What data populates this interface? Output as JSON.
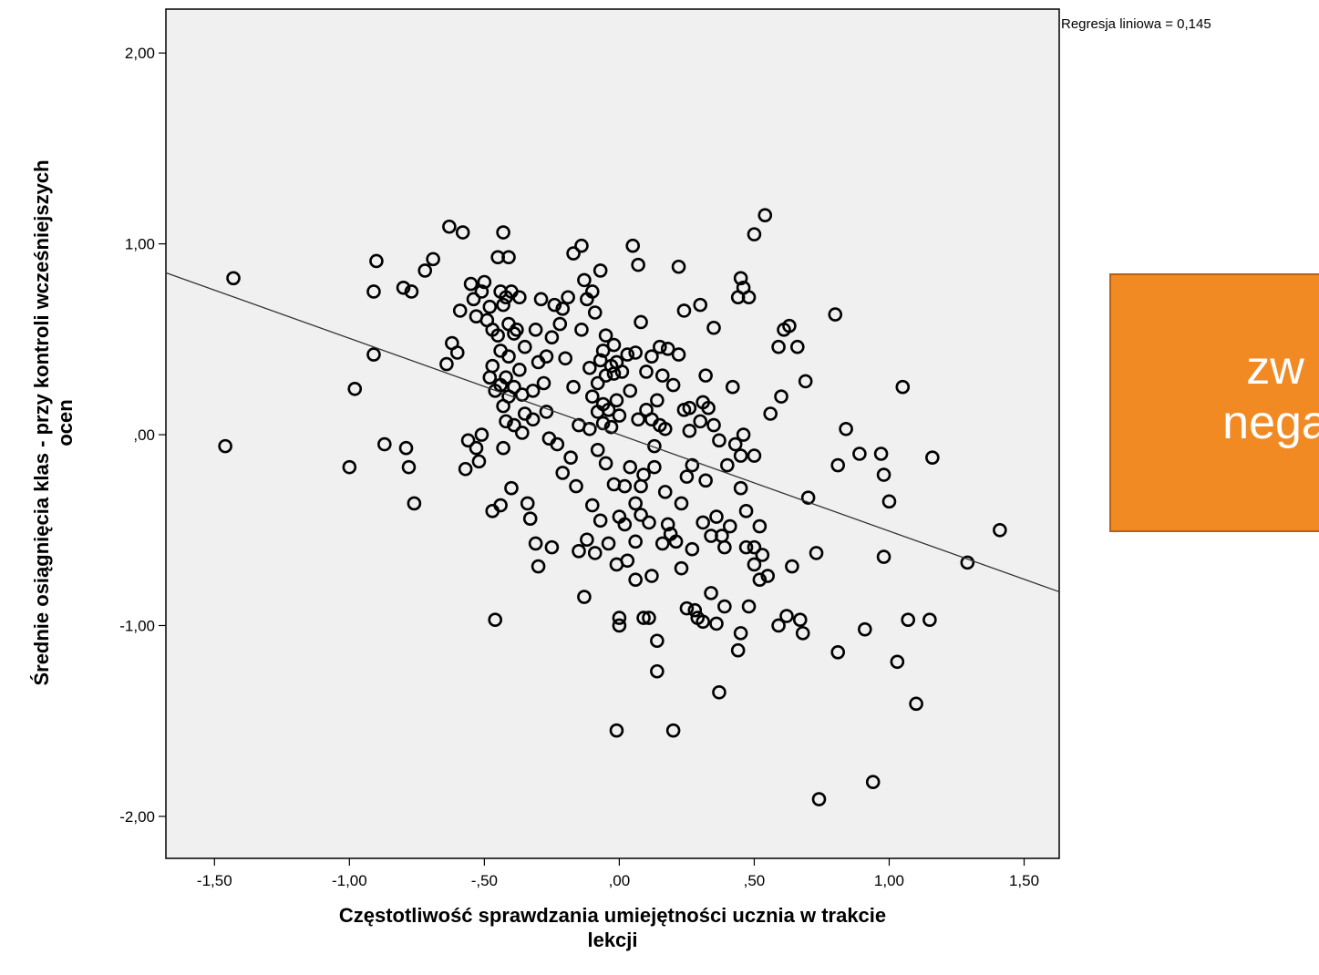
{
  "chart_data": {
    "type": "scatter",
    "title": "",
    "xlabel": "Częstotliwość sprawdzania umiejętności ucznia w trakcie lekcji",
    "ylabel": "Średnie osiągnięcia klas - przy kontroli wcześniejszych ocen",
    "xlim": [
      -1.68,
      1.63
    ],
    "ylim": [
      -2.22,
      2.23
    ],
    "x_ticks": [
      -1.5,
      -1.0,
      -0.5,
      0.0,
      0.5,
      1.0,
      1.5
    ],
    "x_tick_labels": [
      "-1,50",
      "-1,00",
      "-,50",
      ",00",
      ",50",
      "1,00",
      "1,50"
    ],
    "y_ticks": [
      2.0,
      1.0,
      0.0,
      -1.0,
      -2.0
    ],
    "y_tick_labels": [
      "2,00",
      "1,00",
      ",00",
      "-1,00",
      "-2,00"
    ],
    "grid": false,
    "regression": {
      "label": "Regresja liniowa = 0,145",
      "intercept": 0.0,
      "slope": -0.505
    },
    "points": [
      [
        -1.43,
        0.82
      ],
      [
        -1.46,
        -0.06
      ],
      [
        -0.98,
        0.24
      ],
      [
        -1.0,
        -0.17
      ],
      [
        -0.91,
        0.75
      ],
      [
        -0.9,
        0.91
      ],
      [
        -0.91,
        0.42
      ],
      [
        -0.87,
        -0.05
      ],
      [
        -0.8,
        0.77
      ],
      [
        -0.79,
        -0.07
      ],
      [
        -0.78,
        -0.17
      ],
      [
        -0.77,
        0.75
      ],
      [
        -0.76,
        -0.36
      ],
      [
        -0.72,
        0.86
      ],
      [
        -0.69,
        0.92
      ],
      [
        -0.64,
        0.37
      ],
      [
        -0.63,
        1.09
      ],
      [
        -0.62,
        0.48
      ],
      [
        -0.6,
        0.43
      ],
      [
        -0.59,
        0.65
      ],
      [
        -0.58,
        1.06
      ],
      [
        -0.57,
        -0.18
      ],
      [
        -0.56,
        -0.03
      ],
      [
        -0.55,
        0.79
      ],
      [
        -0.54,
        0.71
      ],
      [
        -0.53,
        -0.07
      ],
      [
        -0.53,
        0.62
      ],
      [
        -0.52,
        -0.14
      ],
      [
        -0.51,
        0.0
      ],
      [
        -0.51,
        0.75
      ],
      [
        -0.5,
        0.8
      ],
      [
        -0.49,
        0.6
      ],
      [
        -0.48,
        0.3
      ],
      [
        -0.48,
        0.67
      ],
      [
        -0.47,
        0.55
      ],
      [
        -0.47,
        0.36
      ],
      [
        -0.47,
        -0.4
      ],
      [
        -0.46,
        0.23
      ],
      [
        -0.46,
        -0.97
      ],
      [
        -0.45,
        0.52
      ],
      [
        -0.45,
        0.93
      ],
      [
        -0.44,
        -0.37
      ],
      [
        -0.44,
        0.75
      ],
      [
        -0.44,
        0.44
      ],
      [
        -0.44,
        0.26
      ],
      [
        -0.43,
        0.68
      ],
      [
        -0.43,
        0.15
      ],
      [
        -0.43,
        1.06
      ],
      [
        -0.43,
        -0.07
      ],
      [
        -0.42,
        0.72
      ],
      [
        -0.42,
        0.3
      ],
      [
        -0.42,
        0.07
      ],
      [
        -0.41,
        0.93
      ],
      [
        -0.41,
        0.58
      ],
      [
        -0.41,
        0.2
      ],
      [
        -0.41,
        0.41
      ],
      [
        -0.4,
        -0.28
      ],
      [
        -0.4,
        0.75
      ],
      [
        -0.39,
        0.25
      ],
      [
        -0.39,
        0.05
      ],
      [
        -0.39,
        0.53
      ],
      [
        -0.38,
        0.55
      ],
      [
        -0.37,
        0.34
      ],
      [
        -0.37,
        0.72
      ],
      [
        -0.36,
        0.21
      ],
      [
        -0.36,
        0.01
      ],
      [
        -0.35,
        0.46
      ],
      [
        -0.35,
        0.11
      ],
      [
        -0.34,
        -0.36
      ],
      [
        -0.33,
        -0.44
      ],
      [
        -0.32,
        0.08
      ],
      [
        -0.32,
        0.23
      ],
      [
        -0.31,
        0.55
      ],
      [
        -0.31,
        -0.57
      ],
      [
        -0.3,
        0.38
      ],
      [
        -0.3,
        -0.69
      ],
      [
        -0.29,
        0.71
      ],
      [
        -0.28,
        0.27
      ],
      [
        -0.27,
        0.12
      ],
      [
        -0.27,
        0.41
      ],
      [
        -0.26,
        -0.02
      ],
      [
        -0.25,
        0.51
      ],
      [
        -0.25,
        -0.59
      ],
      [
        -0.24,
        0.68
      ],
      [
        -0.23,
        -0.05
      ],
      [
        -0.22,
        0.58
      ],
      [
        -0.21,
        0.66
      ],
      [
        -0.21,
        -0.2
      ],
      [
        -0.2,
        0.4
      ],
      [
        -0.19,
        0.72
      ],
      [
        -0.18,
        -0.12
      ],
      [
        -0.17,
        0.25
      ],
      [
        -0.17,
        0.95
      ],
      [
        -0.16,
        -0.27
      ],
      [
        -0.15,
        0.05
      ],
      [
        -0.15,
        -0.61
      ],
      [
        -0.14,
        0.99
      ],
      [
        -0.14,
        0.55
      ],
      [
        -0.13,
        -0.85
      ],
      [
        -0.13,
        0.81
      ],
      [
        -0.12,
        0.71
      ],
      [
        -0.12,
        -0.55
      ],
      [
        -0.11,
        0.35
      ],
      [
        -0.11,
        0.03
      ],
      [
        -0.1,
        0.2
      ],
      [
        -0.1,
        -0.37
      ],
      [
        -0.1,
        0.75
      ],
      [
        -0.09,
        0.64
      ],
      [
        -0.09,
        -0.62
      ],
      [
        -0.08,
        0.12
      ],
      [
        -0.08,
        -0.08
      ],
      [
        -0.08,
        0.27
      ],
      [
        -0.07,
        0.86
      ],
      [
        -0.07,
        0.39
      ],
      [
        -0.07,
        -0.45
      ],
      [
        -0.06,
        0.06
      ],
      [
        -0.06,
        0.44
      ],
      [
        -0.06,
        0.16
      ],
      [
        -0.05,
        -0.15
      ],
      [
        -0.05,
        0.31
      ],
      [
        -0.05,
        0.52
      ],
      [
        -0.04,
        0.13
      ],
      [
        -0.04,
        -0.57
      ],
      [
        -0.03,
        0.36
      ],
      [
        -0.03,
        0.04
      ],
      [
        -0.02,
        -0.26
      ],
      [
        -0.02,
        0.32
      ],
      [
        -0.02,
        0.47
      ],
      [
        -0.01,
        0.38
      ],
      [
        -0.01,
        0.18
      ],
      [
        -0.01,
        -0.68
      ],
      [
        -0.01,
        -1.55
      ],
      [
        0.0,
        0.1
      ],
      [
        0.0,
        -0.43
      ],
      [
        0.0,
        -0.96
      ],
      [
        0.0,
        -1.0
      ],
      [
        0.01,
        0.33
      ],
      [
        0.02,
        -0.27
      ],
      [
        0.02,
        -0.47
      ],
      [
        0.03,
        0.42
      ],
      [
        0.03,
        -0.66
      ],
      [
        0.04,
        -0.17
      ],
      [
        0.04,
        0.23
      ],
      [
        0.05,
        0.99
      ],
      [
        0.06,
        -0.76
      ],
      [
        0.06,
        -0.36
      ],
      [
        0.06,
        0.43
      ],
      [
        0.06,
        -0.56
      ],
      [
        0.07,
        0.89
      ],
      [
        0.07,
        0.08
      ],
      [
        0.08,
        -0.27
      ],
      [
        0.08,
        -0.42
      ],
      [
        0.08,
        0.59
      ],
      [
        0.09,
        -0.96
      ],
      [
        0.09,
        -0.21
      ],
      [
        0.1,
        0.13
      ],
      [
        0.1,
        0.33
      ],
      [
        0.11,
        -0.46
      ],
      [
        0.11,
        -0.96
      ],
      [
        0.12,
        0.08
      ],
      [
        0.12,
        -0.74
      ],
      [
        0.12,
        0.41
      ],
      [
        0.13,
        -0.17
      ],
      [
        0.13,
        -0.06
      ],
      [
        0.14,
        -1.08
      ],
      [
        0.14,
        0.18
      ],
      [
        0.14,
        -1.24
      ],
      [
        0.15,
        0.46
      ],
      [
        0.15,
        0.05
      ],
      [
        0.16,
        -0.57
      ],
      [
        0.16,
        0.31
      ],
      [
        0.17,
        0.03
      ],
      [
        0.17,
        -0.3
      ],
      [
        0.18,
        0.45
      ],
      [
        0.18,
        -0.47
      ],
      [
        0.19,
        -0.52
      ],
      [
        0.2,
        0.26
      ],
      [
        0.2,
        -1.55
      ],
      [
        0.21,
        -0.56
      ],
      [
        0.22,
        0.88
      ],
      [
        0.22,
        0.42
      ],
      [
        0.23,
        -0.7
      ],
      [
        0.23,
        -0.36
      ],
      [
        0.24,
        0.13
      ],
      [
        0.24,
        0.65
      ],
      [
        0.25,
        -0.22
      ],
      [
        0.25,
        -0.91
      ],
      [
        0.26,
        0.02
      ],
      [
        0.26,
        0.14
      ],
      [
        0.27,
        -0.6
      ],
      [
        0.27,
        -0.16
      ],
      [
        0.28,
        -0.92
      ],
      [
        0.29,
        -0.96
      ],
      [
        0.3,
        0.68
      ],
      [
        0.3,
        0.07
      ],
      [
        0.31,
        -0.98
      ],
      [
        0.31,
        0.17
      ],
      [
        0.31,
        -0.46
      ],
      [
        0.32,
        0.31
      ],
      [
        0.32,
        -0.24
      ],
      [
        0.33,
        0.14
      ],
      [
        0.34,
        -0.83
      ],
      [
        0.34,
        -0.53
      ],
      [
        0.35,
        0.56
      ],
      [
        0.35,
        0.05
      ],
      [
        0.36,
        -0.99
      ],
      [
        0.36,
        -0.43
      ],
      [
        0.37,
        -0.03
      ],
      [
        0.37,
        -1.35
      ],
      [
        0.38,
        -0.53
      ],
      [
        0.39,
        -0.9
      ],
      [
        0.39,
        -0.59
      ],
      [
        0.4,
        -0.16
      ],
      [
        0.41,
        -0.48
      ],
      [
        0.42,
        0.25
      ],
      [
        0.43,
        -0.05
      ],
      [
        0.44,
        -1.13
      ],
      [
        0.44,
        0.72
      ],
      [
        0.45,
        -0.28
      ],
      [
        0.45,
        -1.04
      ],
      [
        0.45,
        0.82
      ],
      [
        0.45,
        -0.11
      ],
      [
        0.46,
        0.77
      ],
      [
        0.46,
        0.0
      ],
      [
        0.47,
        -0.59
      ],
      [
        0.47,
        -0.4
      ],
      [
        0.48,
        -0.9
      ],
      [
        0.48,
        0.72
      ],
      [
        0.5,
        -0.59
      ],
      [
        0.5,
        1.05
      ],
      [
        0.5,
        -0.68
      ],
      [
        0.5,
        -0.11
      ],
      [
        0.52,
        -0.76
      ],
      [
        0.52,
        -0.48
      ],
      [
        0.53,
        -0.63
      ],
      [
        0.54,
        1.15
      ],
      [
        0.55,
        -0.74
      ],
      [
        0.56,
        0.11
      ],
      [
        0.59,
        -1.0
      ],
      [
        0.59,
        0.46
      ],
      [
        0.6,
        0.2
      ],
      [
        0.61,
        0.55
      ],
      [
        0.62,
        -0.95
      ],
      [
        0.63,
        0.57
      ],
      [
        0.64,
        -0.69
      ],
      [
        0.66,
        0.46
      ],
      [
        0.67,
        -0.97
      ],
      [
        0.68,
        -1.04
      ],
      [
        0.69,
        0.28
      ],
      [
        0.7,
        -0.33
      ],
      [
        0.73,
        -0.62
      ],
      [
        0.74,
        -1.91
      ],
      [
        0.8,
        0.63
      ],
      [
        0.81,
        -1.14
      ],
      [
        0.81,
        -0.16
      ],
      [
        0.84,
        0.03
      ],
      [
        0.89,
        -0.1
      ],
      [
        0.91,
        -1.02
      ],
      [
        0.94,
        -1.82
      ],
      [
        0.97,
        -0.1
      ],
      [
        0.98,
        -0.64
      ],
      [
        0.98,
        -0.21
      ],
      [
        1.0,
        -0.35
      ],
      [
        1.03,
        -1.19
      ],
      [
        1.05,
        0.25
      ],
      [
        1.07,
        -0.97
      ],
      [
        1.1,
        -1.41
      ],
      [
        1.15,
        -0.97
      ],
      [
        1.16,
        -0.12
      ],
      [
        1.29,
        -0.67
      ],
      [
        1.41,
        -0.5
      ]
    ]
  },
  "callout": {
    "text": "zw\nnega",
    "background": "#f28a24"
  }
}
